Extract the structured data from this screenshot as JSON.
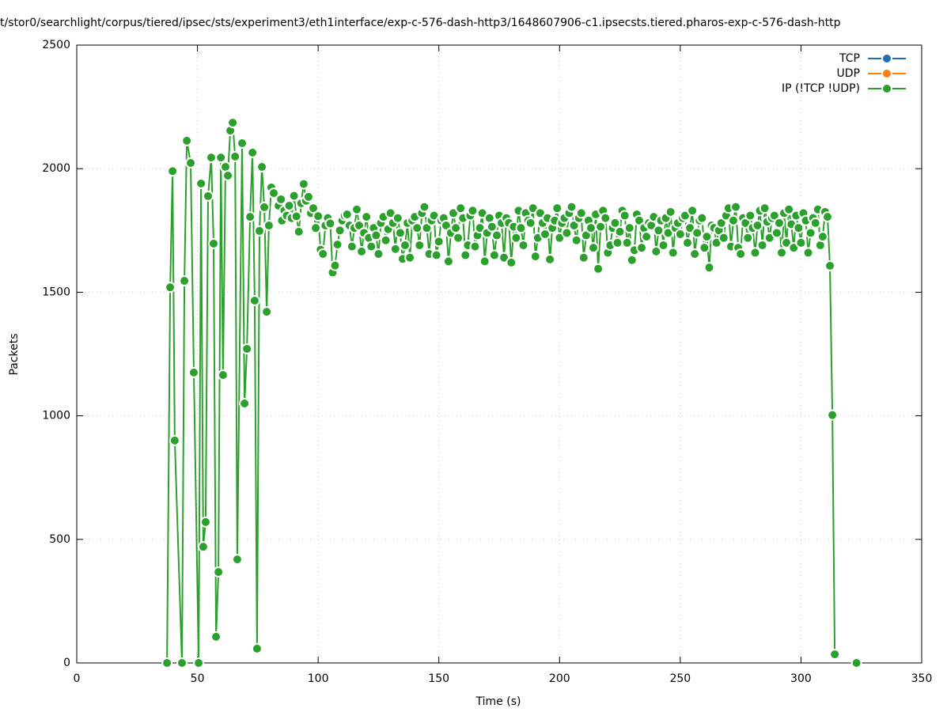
{
  "chart_data": {
    "type": "line",
    "title": "t/stor0/searchlight/corpus/tiered/ipsec/sts/experiment3/eth1interface/exp-c-576-dash-http3/1648607906-c1.ipsecsts.tiered.pharos-exp-c-576-dash-http",
    "x_label": "Time (s)",
    "y_label": "Packets",
    "xlim": [
      0,
      350
    ],
    "xticks": [
      0,
      50,
      100,
      150,
      200,
      250,
      300,
      350
    ],
    "ylim": [
      0,
      2500
    ],
    "yticks": [
      0,
      500,
      1000,
      1500,
      2000,
      2500
    ],
    "grid": true,
    "legend": "top-right",
    "series": [
      {
        "name": "TCP",
        "color": "#1f6fb4",
        "x": [],
        "values": []
      },
      {
        "name": "UDP",
        "color": "#ff7f0e",
        "x": [],
        "values": []
      },
      {
        "name": "IP (!TCP  !UDP)",
        "color": "#2ca02c",
        "x": [
          37.4,
          38.7,
          39.7,
          40.6,
          43.6,
          44.6,
          45.6,
          47.2,
          48.5,
          50.5,
          51.5,
          52.4,
          53.4,
          54.4,
          55.7,
          56.7,
          57.7,
          58.7,
          59.7,
          60.6,
          61.6,
          62.6,
          63.6,
          64.6,
          65.6,
          66.5,
          68.5,
          69.5,
          70.5,
          71.8,
          72.8,
          73.7,
          74.7,
          75.7,
          76.7,
          77.7,
          78.7,
          79.6,
          80.6,
          81.6,
          83.6,
          84.6,
          85,
          86,
          87,
          88,
          89,
          90,
          91,
          92,
          93,
          94,
          95,
          96,
          97,
          98,
          99,
          100,
          101,
          102,
          103,
          104,
          105,
          106,
          107,
          108,
          109,
          110,
          111,
          112,
          113,
          114,
          115,
          116,
          117,
          118,
          119,
          120,
          121,
          122,
          123,
          124,
          125,
          126,
          127,
          128,
          129,
          130,
          131,
          132,
          133,
          134,
          135,
          136,
          137,
          138,
          139,
          140,
          141,
          142,
          143,
          144,
          145,
          146,
          147,
          148,
          149,
          150,
          151,
          152,
          153,
          154,
          155,
          156,
          157,
          158,
          159,
          160,
          161,
          162,
          163,
          164,
          165,
          166,
          167,
          168,
          169,
          170,
          171,
          172,
          173,
          174,
          175,
          176,
          177,
          178,
          179,
          180,
          181,
          182,
          183,
          184,
          185,
          186,
          187,
          188,
          189,
          190,
          191,
          192,
          193,
          194,
          195,
          196,
          197,
          198,
          199,
          200,
          201,
          202,
          203,
          204,
          205,
          206,
          207,
          208,
          209,
          210,
          211,
          212,
          213,
          214,
          215,
          216,
          217,
          218,
          219,
          220,
          221,
          222,
          223,
          224,
          225,
          226,
          227,
          228,
          229,
          230,
          231,
          232,
          233,
          234,
          235,
          236,
          237,
          238,
          239,
          240,
          241,
          242,
          243,
          244,
          245,
          246,
          247,
          248,
          249,
          250,
          251,
          252,
          253,
          254,
          255,
          256,
          257,
          258,
          259,
          260,
          261,
          262,
          263,
          264,
          265,
          266,
          267,
          268,
          269,
          270,
          271,
          272,
          273,
          274,
          275,
          276,
          277,
          278,
          279,
          280,
          281,
          282,
          283,
          284,
          285,
          286,
          287,
          288,
          289,
          290,
          291,
          292,
          293,
          294,
          295,
          296,
          297,
          298,
          299,
          300,
          301,
          302,
          303,
          304,
          305,
          306,
          307,
          308,
          309,
          310,
          311,
          312,
          313,
          314,
          318,
          323
        ],
        "values": [
          0,
          1520,
          1990,
          900,
          0,
          1546,
          2113,
          2023,
          1175,
          0,
          1940,
          470,
          570,
          1889,
          2045,
          1697,
          106,
          368,
          2045,
          1165,
          2007,
          1972,
          2154,
          2186,
          2049,
          419,
          2103,
          1050,
          1271,
          1805,
          2065,
          1466,
          58,
          1748,
          2007,
          1844,
          1421,
          1770,
          1924,
          1901,
          1850,
          1876,
          1790,
          1830,
          1810,
          1850,
          1800,
          1890,
          1807,
          1745,
          1860,
          1938,
          1870,
          1886,
          1820,
          1840,
          1760,
          1808,
          1672,
          1655,
          1770,
          1800,
          1778,
          1580,
          1608,
          1693,
          1750,
          1790,
          1810,
          1815,
          1770,
          1685,
          1760,
          1835,
          1770,
          1665,
          1740,
          1805,
          1720,
          1685,
          1760,
          1730,
          1655,
          1780,
          1805,
          1710,
          1755,
          1820,
          1780,
          1675,
          1800,
          1740,
          1635,
          1690,
          1780,
          1640,
          1790,
          1805,
          1760,
          1690,
          1820,
          1845,
          1760,
          1655,
          1790,
          1810,
          1650,
          1705,
          1790,
          1800,
          1770,
          1625,
          1740,
          1820,
          1760,
          1720,
          1840,
          1800,
          1650,
          1690,
          1810,
          1830,
          1685,
          1730,
          1760,
          1820,
          1625,
          1740,
          1800,
          1765,
          1650,
          1730,
          1810,
          1780,
          1640,
          1800,
          1780,
          1620,
          1765,
          1720,
          1830,
          1760,
          1690,
          1820,
          1790,
          1780,
          1840,
          1645,
          1720,
          1820,
          1780,
          1735,
          1800,
          1633,
          1760,
          1790,
          1840,
          1720,
          1780,
          1800,
          1740,
          1820,
          1845,
          1770,
          1710,
          1800,
          1820,
          1640,
          1730,
          1790,
          1760,
          1680,
          1815,
          1595,
          1765,
          1830,
          1800,
          1660,
          1690,
          1760,
          1780,
          1700,
          1745,
          1830,
          1810,
          1700,
          1760,
          1630,
          1670,
          1815,
          1790,
          1680,
          1760,
          1725,
          1780,
          1770,
          1805,
          1665,
          1750,
          1790,
          1690,
          1800,
          1740,
          1825,
          1660,
          1760,
          1780,
          1735,
          1800,
          1810,
          1700,
          1760,
          1830,
          1655,
          1740,
          1790,
          1800,
          1680,
          1725,
          1600,
          1770,
          1760,
          1700,
          1750,
          1780,
          1720,
          1810,
          1840,
          1685,
          1790,
          1845,
          1680,
          1655,
          1800,
          1780,
          1720,
          1810,
          1760,
          1660,
          1770,
          1830,
          1690,
          1840,
          1785,
          1720,
          1800,
          1810,
          1740,
          1780,
          1660,
          1820,
          1700,
          1835,
          1775,
          1680,
          1810,
          1760,
          1700,
          1820,
          1790,
          1660,
          1740,
          1800,
          1780,
          1835,
          1690,
          1725,
          1825,
          1805,
          1607,
          1003,
          35,
          null,
          0
        ]
      }
    ]
  }
}
